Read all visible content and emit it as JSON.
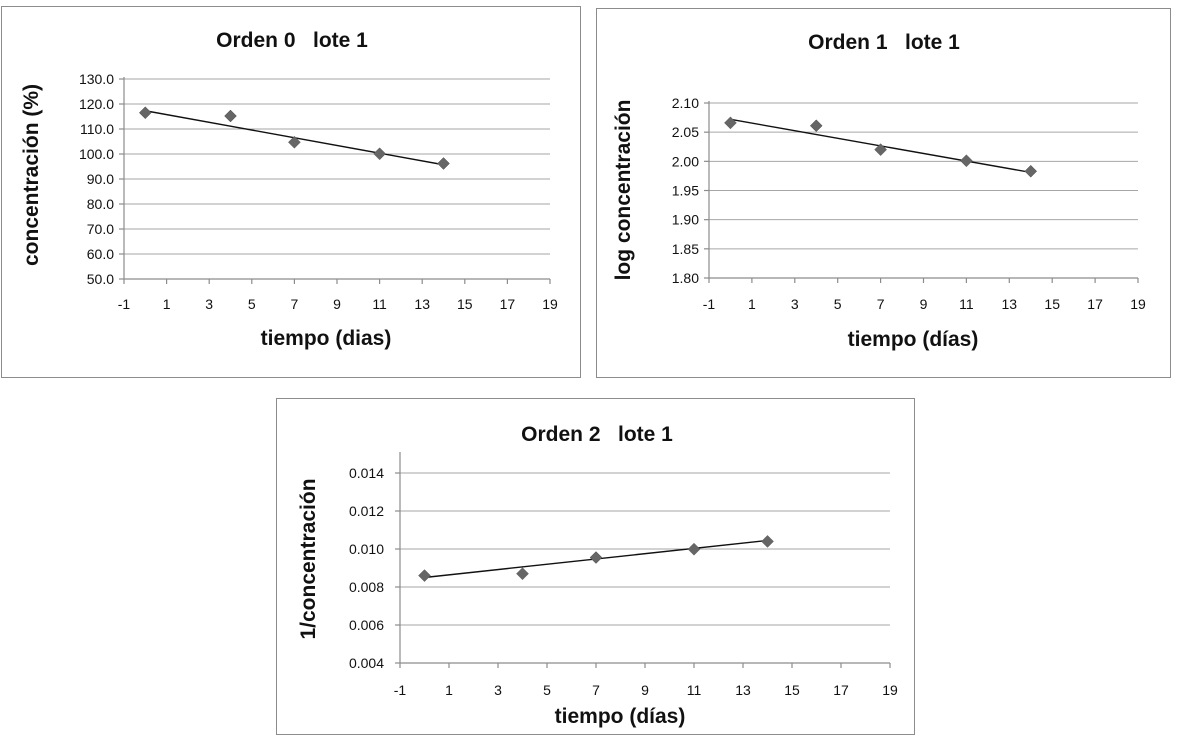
{
  "chart_data": [
    {
      "type": "scatter",
      "title": "Orden 0   lote 1",
      "xlabel": "tiempo (dias)",
      "ylabel": "concentración (%)",
      "xlim": [
        -1,
        19
      ],
      "ylim": [
        50,
        130
      ],
      "x_ticks": [
        "-1",
        "1",
        "3",
        "5",
        "7",
        "9",
        "11",
        "13",
        "15",
        "17",
        "19"
      ],
      "y_ticks": [
        "50.0",
        "60.0",
        "70.0",
        "80.0",
        "90.0",
        "100.0",
        "110.0",
        "120.0",
        "130.0"
      ],
      "series": [
        {
          "name": "lote 1",
          "x": [
            0,
            4,
            7,
            11,
            14
          ],
          "y": [
            116.5,
            115.2,
            104.7,
            100.1,
            96.2
          ]
        }
      ],
      "trendline": {
        "x": [
          0,
          14
        ],
        "y": [
          117.3,
          95.7
        ]
      }
    },
    {
      "type": "scatter",
      "title": "Orden 1   lote 1",
      "xlabel": "tiempo (días)",
      "ylabel": "log concentración",
      "xlim": [
        -1,
        19
      ],
      "ylim": [
        1.8,
        2.1
      ],
      "x_ticks": [
        "-1",
        "1",
        "3",
        "5",
        "7",
        "9",
        "11",
        "13",
        "15",
        "17",
        "19"
      ],
      "y_ticks": [
        "1.80",
        "1.85",
        "1.90",
        "1.95",
        "2.00",
        "2.05",
        "2.10"
      ],
      "series": [
        {
          "name": "lote 1",
          "x": [
            0,
            4,
            7,
            11,
            14
          ],
          "y": [
            2.066,
            2.061,
            2.02,
            2.001,
            1.983
          ]
        }
      ],
      "trendline": {
        "x": [
          0,
          14
        ],
        "y": [
          2.072,
          1.981
        ]
      }
    },
    {
      "type": "scatter",
      "title": "Orden 2   lote 1",
      "xlabel": "tiempo (días)",
      "ylabel": "1/concentración",
      "xlim": [
        -1,
        19
      ],
      "ylim": [
        0.004,
        0.015
      ],
      "x_ticks": [
        "-1",
        "1",
        "3",
        "5",
        "7",
        "9",
        "11",
        "13",
        "15",
        "17",
        "19"
      ],
      "y_ticks": [
        "0.004",
        "0.006",
        "0.008",
        "0.010",
        "0.012",
        "0.014"
      ],
      "series": [
        {
          "name": "lote 1",
          "x": [
            0,
            4,
            7,
            11,
            14
          ],
          "y": [
            0.0086,
            0.0087,
            0.00955,
            0.00999,
            0.0104
          ]
        }
      ],
      "trendline": {
        "x": [
          0,
          14
        ],
        "y": [
          0.0085,
          0.01045
        ]
      }
    }
  ]
}
